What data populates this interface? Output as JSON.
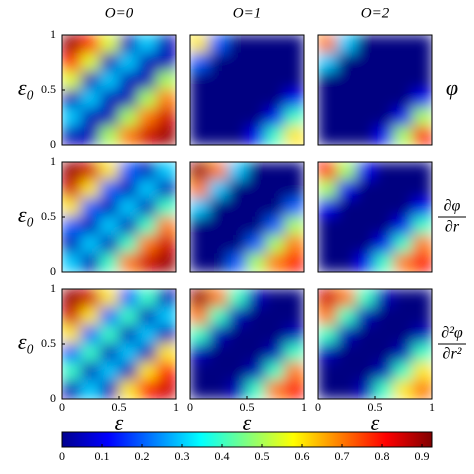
{
  "chart_data": [
    {
      "type": "heatmap",
      "title": "O=0",
      "ylabel": "ε₀",
      "xlim": [
        0,
        1
      ],
      "ylim": [
        0,
        1
      ],
      "yticks": [
        0,
        0.5,
        1
      ],
      "z": [
        [
          0.9,
          0.8,
          0.55,
          0.05,
          0.3,
          0.05
        ],
        [
          0.8,
          0.55,
          0.05,
          0.3,
          0.05,
          0.05
        ],
        [
          0.55,
          0.05,
          0.3,
          0.05,
          0.05,
          0.5
        ],
        [
          0.05,
          0.3,
          0.05,
          0.05,
          0.5,
          0.7
        ],
        [
          0.3,
          0.05,
          0.05,
          0.5,
          0.7,
          0.85
        ],
        [
          0.05,
          0.05,
          0.5,
          0.7,
          0.85,
          0.9
        ]
      ]
    },
    {
      "type": "heatmap",
      "title": "O=1",
      "xlim": [
        0,
        1
      ],
      "ylim": [
        0,
        1
      ],
      "z": [
        [
          0.6,
          0.2,
          0,
          0,
          0,
          0
        ],
        [
          0.2,
          0,
          0,
          0,
          0,
          0
        ],
        [
          0,
          0,
          0,
          0,
          0,
          0
        ],
        [
          0,
          0,
          0,
          0,
          0,
          0.1
        ],
        [
          0,
          0,
          0,
          0,
          0.1,
          0.4
        ],
        [
          0,
          0,
          0,
          0.1,
          0.4,
          0.6
        ]
      ]
    },
    {
      "type": "heatmap",
      "title": "O=2",
      "row_label": {
        "text": "φ"
      },
      "xlim": [
        0,
        1
      ],
      "ylim": [
        0,
        1
      ],
      "z": [
        [
          0.7,
          0.3,
          0,
          0,
          0,
          0
        ],
        [
          0.3,
          0,
          0,
          0,
          0,
          0
        ],
        [
          0,
          0,
          0,
          0,
          0,
          0
        ],
        [
          0,
          0,
          0,
          0,
          0,
          0.1
        ],
        [
          0,
          0,
          0,
          0,
          0.1,
          0.5
        ],
        [
          0,
          0,
          0,
          0.1,
          0.5,
          0.8
        ]
      ]
    },
    {
      "type": "heatmap",
      "ylabel": "ε₀",
      "xlim": [
        0,
        1
      ],
      "ylim": [
        0,
        1
      ],
      "yticks": [
        0,
        0.5,
        1
      ],
      "z": [
        [
          0.9,
          0.85,
          0.6,
          0.2,
          0.05,
          0.3
        ],
        [
          0.85,
          0.6,
          0.2,
          0.05,
          0.3,
          0.05
        ],
        [
          0.6,
          0.2,
          0.05,
          0.3,
          0.05,
          0.4
        ],
        [
          0.2,
          0.05,
          0.3,
          0.05,
          0.4,
          0.7
        ],
        [
          0.05,
          0.3,
          0.05,
          0.4,
          0.7,
          0.85
        ],
        [
          0.3,
          0.05,
          0.4,
          0.7,
          0.85,
          0.9
        ]
      ]
    },
    {
      "type": "heatmap",
      "xlim": [
        0,
        1
      ],
      "ylim": [
        0,
        1
      ],
      "z": [
        [
          0.9,
          0.7,
          0.3,
          0,
          0,
          0
        ],
        [
          0.7,
          0.3,
          0,
          0,
          0,
          0
        ],
        [
          0.3,
          0,
          0,
          0,
          0,
          0.2
        ],
        [
          0,
          0,
          0,
          0,
          0.2,
          0.5
        ],
        [
          0,
          0,
          0,
          0.2,
          0.5,
          0.7
        ],
        [
          0,
          0,
          0.2,
          0.5,
          0.7,
          0.8
        ]
      ]
    },
    {
      "type": "heatmap",
      "row_label": {
        "numerator": "∂φ",
        "denominator": "∂r"
      },
      "xlim": [
        0,
        1
      ],
      "ylim": [
        0,
        1
      ],
      "z": [
        [
          0.8,
          0.5,
          0.1,
          0,
          0,
          0
        ],
        [
          0.5,
          0.1,
          0,
          0,
          0,
          0
        ],
        [
          0.1,
          0,
          0,
          0,
          0,
          0.1
        ],
        [
          0,
          0,
          0,
          0,
          0.1,
          0.4
        ],
        [
          0,
          0,
          0,
          0.1,
          0.4,
          0.7
        ],
        [
          0,
          0,
          0.1,
          0.4,
          0.7,
          0.8
        ]
      ]
    },
    {
      "type": "heatmap",
      "ylabel": "ε₀",
      "xlabel": "ε",
      "xlim": [
        0,
        1
      ],
      "ylim": [
        0,
        1
      ],
      "yticks": [
        0,
        0.5,
        1
      ],
      "xticks": [
        0,
        0.5,
        1
      ],
      "z": [
        [
          0.9,
          0.85,
          0.6,
          0.2,
          0.4,
          0.05
        ],
        [
          0.85,
          0.6,
          0.2,
          0.4,
          0.05,
          0.3
        ],
        [
          0.6,
          0.2,
          0.4,
          0.05,
          0.3,
          0.05
        ],
        [
          0.2,
          0.4,
          0.05,
          0.3,
          0.05,
          0.6
        ],
        [
          0.4,
          0.05,
          0.3,
          0.05,
          0.6,
          0.8
        ],
        [
          0.05,
          0.3,
          0.05,
          0.6,
          0.8,
          0.85
        ]
      ]
    },
    {
      "type": "heatmap",
      "xlabel": "ε",
      "xlim": [
        0,
        1
      ],
      "ylim": [
        0,
        1
      ],
      "xticks": [
        0,
        0.5,
        1
      ],
      "z": [
        [
          0.9,
          0.7,
          0.4,
          0.05,
          0,
          0
        ],
        [
          0.7,
          0.4,
          0.05,
          0,
          0,
          0
        ],
        [
          0.4,
          0.05,
          0,
          0,
          0,
          0.05
        ],
        [
          0.05,
          0,
          0,
          0,
          0.05,
          0.4
        ],
        [
          0,
          0,
          0,
          0.05,
          0.4,
          0.7
        ],
        [
          0,
          0,
          0.05,
          0.4,
          0.7,
          0.8
        ]
      ]
    },
    {
      "type": "heatmap",
      "xlabel": "ε",
      "row_label": {
        "numerator": "∂²φ",
        "denominator": "∂r²"
      },
      "xlim": [
        0,
        1
      ],
      "ylim": [
        0,
        1
      ],
      "xticks": [
        0,
        0.5,
        1
      ],
      "z": [
        [
          0.85,
          0.7,
          0.4,
          0.05,
          0,
          0
        ],
        [
          0.7,
          0.4,
          0.05,
          0,
          0,
          0
        ],
        [
          0.4,
          0.05,
          0,
          0,
          0,
          0.05
        ],
        [
          0.05,
          0,
          0,
          0,
          0.05,
          0.4
        ],
        [
          0,
          0,
          0,
          0.05,
          0.4,
          0.6
        ],
        [
          0,
          0,
          0.05,
          0.4,
          0.6,
          0.7
        ]
      ]
    },
    {
      "type": "colorbar",
      "colormap": "jet",
      "clim": [
        0,
        0.925
      ],
      "ticks": [
        0,
        0.1,
        0.2,
        0.3,
        0.4,
        0.5,
        0.6,
        0.7,
        0.8,
        0.9
      ]
    }
  ]
}
